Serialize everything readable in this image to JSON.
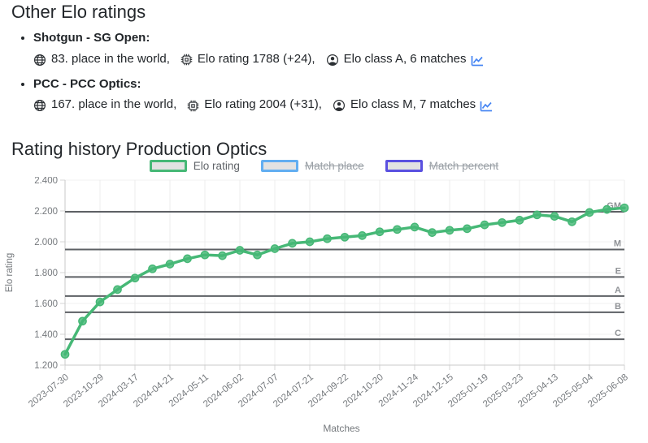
{
  "page": {
    "title": "Other Elo ratings",
    "history_title": "Rating history Production Optics"
  },
  "icons": {
    "place": "globe-icon",
    "elo": "cpu-icon",
    "class": "person-icon",
    "history": "line-chart-icon"
  },
  "other_ratings": [
    {
      "discipline": "Shotgun - SG Open:",
      "place": "83. place in the world,",
      "elo": "Elo rating 1788 (+24),",
      "elo_class": "Elo class A, 6 matches"
    },
    {
      "discipline": "PCC - PCC Optics:",
      "place": "167. place in the world,",
      "elo": "Elo rating 2004 (+31),",
      "elo_class": "Elo class M, 7 matches"
    }
  ],
  "chart_data": {
    "type": "line",
    "xlabel": "Matches",
    "ylabel": "Elo rating",
    "ylim": [
      1200,
      2400
    ],
    "grid": true,
    "legend_position": "top",
    "legend": [
      {
        "label": "Elo rating",
        "color": "#46b876",
        "active": true
      },
      {
        "label": "Match place",
        "color": "#62aef1",
        "active": false
      },
      {
        "label": "Match percent",
        "color": "#5a50e0",
        "active": false
      }
    ],
    "yticks": [
      {
        "value": 2400,
        "label": "2.400"
      },
      {
        "value": 2200,
        "label": "2.200"
      },
      {
        "value": 2000,
        "label": "2.000"
      },
      {
        "value": 1800,
        "label": "1.800"
      },
      {
        "value": 1600,
        "label": "1.600"
      },
      {
        "value": 1400,
        "label": "1.400"
      },
      {
        "value": 1200,
        "label": "1.200"
      }
    ],
    "x_tick_labels": [
      "2023-07-30",
      "2023-10-29",
      "2024-03-17",
      "2024-04-21",
      "2024-05-11",
      "2024-06-02",
      "2024-07-07",
      "2024-07-21",
      "2024-09-22",
      "2024-10-20",
      "2024-11-24",
      "2024-12-15",
      "2025-01-19",
      "2025-03-23",
      "2025-04-13",
      "2025-05-04",
      "2025-06-08"
    ],
    "values": [
      1270,
      1485,
      1610,
      1690,
      1765,
      1825,
      1855,
      1890,
      1915,
      1910,
      1945,
      1915,
      1955,
      1990,
      2000,
      2020,
      2030,
      2040,
      2065,
      2080,
      2095,
      2060,
      2075,
      2085,
      2110,
      2125,
      2140,
      2175,
      2165,
      2130,
      2190,
      2210,
      2220
    ],
    "class_lines": [
      {
        "label": "GM",
        "value": 2195
      },
      {
        "label": "M",
        "value": 1950
      },
      {
        "label": "E",
        "value": 1772
      },
      {
        "label": "A",
        "value": 1648
      },
      {
        "label": "B",
        "value": 1543
      },
      {
        "label": "C",
        "value": 1368
      }
    ]
  }
}
